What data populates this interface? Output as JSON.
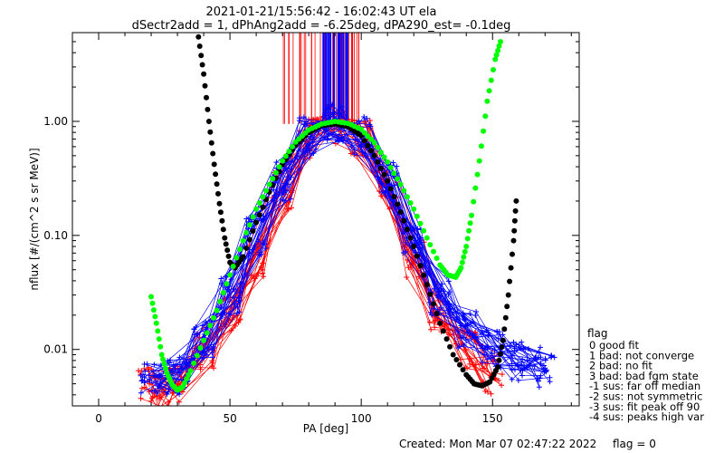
{
  "header": {
    "line1": "2021-01-21/15:56:42 - 16:02:43 UT ela",
    "line2": "dSectr2add = 1, dPhAng2add = -6.25deg, dPA290_est=  -0.1deg"
  },
  "footer": {
    "created": "Created: Mon Mar 07 02:47:22 2022",
    "flag": "flag = 0"
  },
  "legend": {
    "title": "flag",
    "items": [
      "0 good fit",
      "1 bad: not converge",
      "2 bad: no fit",
      "3 bad: bad fgm state",
      "-1 sus: far off median",
      "-2 sus: not symmetric",
      "-3 sus: fit peak off 90",
      "-4 sus: peaks high var"
    ]
  },
  "colors": {
    "red": "#ff0000",
    "blue": "#0000ff",
    "black": "#000000",
    "green": "#00ff00"
  },
  "chart_data": {
    "type": "scatter",
    "xlabel": "PA [deg]",
    "ylabel": "nflux [#/(cm^2 s sr MeV)]",
    "xlim": [
      -10,
      183
    ],
    "ylim": [
      0.0032,
      6.0
    ],
    "yscale": "log",
    "x_ticks": [
      0,
      50,
      100,
      150
    ],
    "x_tick_labels": [
      "0",
      "50",
      "100",
      "150"
    ],
    "y_ticks": [
      0.01,
      0.1,
      1.0
    ],
    "y_tick_labels": [
      "0.01",
      "0.10",
      "1.00"
    ],
    "grid": false,
    "legend_position": "right",
    "series": [
      {
        "color": "red",
        "marker": "plus",
        "style": "line+markers",
        "spread": "many overlapping passes",
        "peak_x": [
          70,
          100
        ],
        "peak_y": 0.95,
        "x": [
          18,
          25,
          30,
          40,
          50,
          60,
          70,
          80,
          90,
          100,
          110,
          120,
          130,
          140,
          150
        ],
        "y": [
          0.005,
          0.0045,
          0.005,
          0.01,
          0.02,
          0.06,
          0.25,
          0.7,
          0.95,
          0.7,
          0.25,
          0.06,
          0.02,
          0.01,
          0.006
        ]
      },
      {
        "color": "blue",
        "marker": "plus",
        "style": "line+markers",
        "spread": "many overlapping passes",
        "peak_x": [
          85,
          95
        ],
        "peak_y": 1.05,
        "x": [
          20,
          30,
          40,
          50,
          60,
          70,
          80,
          90,
          100,
          110,
          120,
          130,
          140,
          150,
          160,
          170
        ],
        "y": [
          0.006,
          0.006,
          0.012,
          0.03,
          0.1,
          0.3,
          0.75,
          1.0,
          0.75,
          0.3,
          0.1,
          0.03,
          0.015,
          0.01,
          0.008,
          0.007
        ]
      },
      {
        "color": "black",
        "marker": "dot",
        "style": "markers",
        "x": [
          38,
          40,
          42,
          44,
          46,
          48,
          50,
          52,
          55,
          60,
          65,
          70,
          75,
          80,
          85,
          90,
          95,
          100,
          105,
          110,
          115,
          120,
          125,
          130,
          135,
          140,
          143,
          146,
          149,
          152,
          154,
          156,
          158,
          159
        ],
        "y": [
          5.5,
          2.6,
          1.0,
          0.42,
          0.19,
          0.095,
          0.058,
          0.052,
          0.065,
          0.13,
          0.24,
          0.42,
          0.62,
          0.8,
          0.92,
          0.95,
          0.9,
          0.75,
          0.5,
          0.3,
          0.16,
          0.08,
          0.037,
          0.017,
          0.009,
          0.006,
          0.005,
          0.0048,
          0.0052,
          0.007,
          0.012,
          0.03,
          0.09,
          0.2
        ]
      },
      {
        "color": "green",
        "marker": "dot",
        "style": "markers",
        "x": [
          20,
          22,
          24,
          26,
          28,
          30,
          32,
          35,
          40,
          45,
          50,
          55,
          60,
          65,
          70,
          75,
          80,
          85,
          90,
          95,
          100,
          105,
          110,
          115,
          120,
          125,
          130,
          133,
          136,
          138,
          140,
          142,
          145,
          148,
          151,
          153
        ],
        "y": [
          0.029,
          0.017,
          0.009,
          0.0062,
          0.0049,
          0.0044,
          0.0047,
          0.0065,
          0.012,
          0.022,
          0.045,
          0.09,
          0.17,
          0.28,
          0.45,
          0.66,
          0.84,
          0.95,
          1.0,
          0.96,
          0.85,
          0.65,
          0.44,
          0.28,
          0.17,
          0.095,
          0.055,
          0.045,
          0.043,
          0.052,
          0.08,
          0.15,
          0.45,
          1.5,
          3.5,
          5.0
        ]
      }
    ]
  }
}
